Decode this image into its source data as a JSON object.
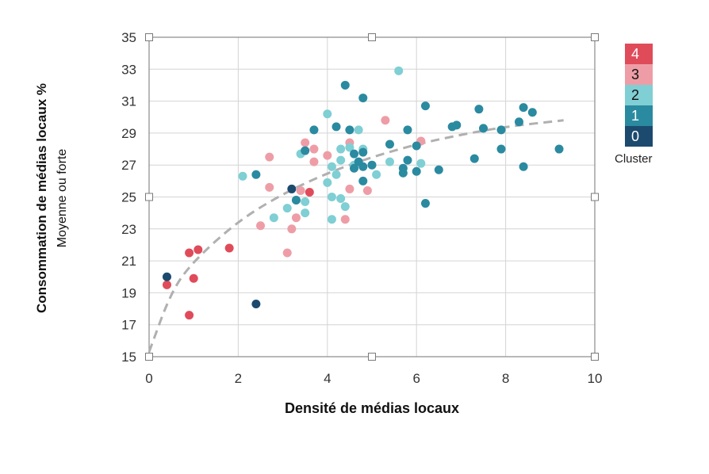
{
  "chart_data": {
    "type": "scatter",
    "xlabel": "Densité de médias locaux",
    "ylabel_main": "Consommation de médias locaux %",
    "ylabel_sub": "Moyenne ou forte",
    "xlim": [
      0,
      10
    ],
    "ylim": [
      15,
      35
    ],
    "xticks": [
      0,
      2,
      4,
      6,
      8,
      10
    ],
    "yticks": [
      15,
      17,
      19,
      21,
      23,
      25,
      27,
      29,
      31,
      33,
      35
    ],
    "grid": true,
    "legend": {
      "title": "Cluster",
      "placement": "right",
      "items": [
        {
          "label": "4",
          "cluster": 4,
          "color": "#e04b5a",
          "text_color": "#ffffff"
        },
        {
          "label": "3",
          "cluster": 3,
          "color": "#ee9da6",
          "text_color": "#111111"
        },
        {
          "label": "2",
          "cluster": 2,
          "color": "#7fcfd4",
          "text_color": "#111111"
        },
        {
          "label": "1",
          "cluster": 1,
          "color": "#2a8aa0",
          "text_color": "#ffffff"
        },
        {
          "label": "0",
          "cluster": 0,
          "color": "#1c4a6e",
          "text_color": "#ffffff"
        }
      ]
    },
    "trendline": {
      "style": "dashed",
      "color": "#b0b0b0",
      "points": [
        [
          0,
          15.3
        ],
        [
          0.5,
          19.1
        ],
        [
          1,
          21.0
        ],
        [
          2,
          23.5
        ],
        [
          3,
          25.2
        ],
        [
          4,
          26.5
        ],
        [
          5,
          27.5
        ],
        [
          6,
          28.3
        ],
        [
          7,
          28.9
        ],
        [
          8,
          29.4
        ],
        [
          9.3,
          29.8
        ]
      ]
    },
    "series": [
      {
        "cluster": 4,
        "points": [
          [
            0.4,
            19.5
          ],
          [
            0.9,
            21.5
          ],
          [
            1.1,
            21.7
          ],
          [
            1.0,
            19.9
          ],
          [
            0.9,
            17.6
          ],
          [
            1.8,
            21.8
          ],
          [
            3.6,
            25.3
          ]
        ]
      },
      {
        "cluster": 3,
        "points": [
          [
            2.5,
            23.2
          ],
          [
            2.7,
            27.5
          ],
          [
            2.7,
            25.6
          ],
          [
            3.1,
            21.5
          ],
          [
            3.2,
            23.0
          ],
          [
            3.3,
            23.7
          ],
          [
            3.4,
            25.4
          ],
          [
            3.5,
            28.4
          ],
          [
            3.7,
            28.0
          ],
          [
            3.7,
            27.2
          ],
          [
            4.0,
            27.6
          ],
          [
            4.4,
            23.6
          ],
          [
            4.5,
            28.4
          ],
          [
            4.5,
            25.5
          ],
          [
            4.9,
            25.4
          ],
          [
            5.3,
            29.8
          ],
          [
            6.1,
            28.5
          ]
        ]
      },
      {
        "cluster": 2,
        "points": [
          [
            2.1,
            26.3
          ],
          [
            2.8,
            23.7
          ],
          [
            3.1,
            24.3
          ],
          [
            3.3,
            24.8
          ],
          [
            3.4,
            27.7
          ],
          [
            3.5,
            24.7
          ],
          [
            3.5,
            24.0
          ],
          [
            4.0,
            30.2
          ],
          [
            4.0,
            25.9
          ],
          [
            4.1,
            26.9
          ],
          [
            4.1,
            25.0
          ],
          [
            4.1,
            23.6
          ],
          [
            4.2,
            26.4
          ],
          [
            4.3,
            28.0
          ],
          [
            4.3,
            27.3
          ],
          [
            4.3,
            24.9
          ],
          [
            4.4,
            24.4
          ],
          [
            4.5,
            28.1
          ],
          [
            4.6,
            27.0
          ],
          [
            4.7,
            29.2
          ],
          [
            4.8,
            28.0
          ],
          [
            5.1,
            26.4
          ],
          [
            5.4,
            27.2
          ],
          [
            5.6,
            32.9
          ],
          [
            6.1,
            27.1
          ]
        ]
      },
      {
        "cluster": 1,
        "points": [
          [
            2.4,
            26.4
          ],
          [
            3.3,
            24.8
          ],
          [
            3.5,
            27.9
          ],
          [
            3.7,
            29.2
          ],
          [
            4.2,
            29.4
          ],
          [
            4.4,
            32.0
          ],
          [
            4.5,
            29.2
          ],
          [
            4.6,
            27.7
          ],
          [
            4.6,
            26.8
          ],
          [
            4.7,
            27.2
          ],
          [
            4.8,
            31.2
          ],
          [
            4.8,
            27.8
          ],
          [
            4.8,
            26.9
          ],
          [
            4.8,
            26.0
          ],
          [
            5.0,
            27.0
          ],
          [
            5.4,
            28.3
          ],
          [
            5.7,
            26.8
          ],
          [
            5.7,
            26.5
          ],
          [
            5.8,
            29.2
          ],
          [
            5.8,
            27.3
          ],
          [
            6.0,
            28.2
          ],
          [
            6.0,
            26.6
          ],
          [
            6.2,
            30.7
          ],
          [
            6.2,
            24.6
          ],
          [
            6.5,
            26.7
          ],
          [
            6.8,
            29.4
          ],
          [
            6.9,
            29.5
          ],
          [
            7.3,
            27.4
          ],
          [
            7.4,
            30.5
          ],
          [
            7.5,
            29.3
          ],
          [
            7.9,
            29.2
          ],
          [
            7.9,
            28.0
          ],
          [
            8.3,
            29.7
          ],
          [
            8.4,
            30.6
          ],
          [
            8.4,
            26.9
          ],
          [
            8.6,
            30.3
          ],
          [
            9.2,
            28.0
          ]
        ]
      },
      {
        "cluster": 0,
        "points": [
          [
            0.4,
            20.0
          ],
          [
            2.4,
            18.3
          ],
          [
            3.2,
            25.5
          ]
        ]
      }
    ]
  }
}
